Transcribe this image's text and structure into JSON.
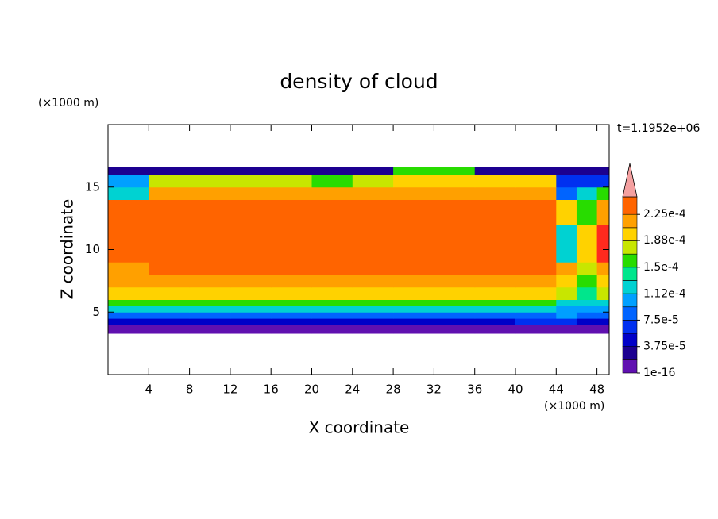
{
  "chart_data": {
    "type": "contour",
    "title": "density of cloud",
    "x_label": "X coordinate",
    "y_label": "Z coordinate",
    "x_unit": "(×1000 m)",
    "y_unit": "(×1000 m)",
    "time_label": "t=1.1952e+06",
    "xlim": [
      0,
      49.2
    ],
    "ylim": [
      0,
      20
    ],
    "xticks": [
      4,
      8,
      12,
      16,
      20,
      24,
      28,
      32,
      36,
      40,
      44,
      48
    ],
    "yticks": [
      5,
      10,
      15
    ],
    "x_edges": [
      0,
      4,
      8,
      12,
      16,
      20,
      24,
      28,
      32,
      36,
      40,
      44,
      46,
      48,
      49.2
    ],
    "z_edges": [
      3.3,
      4,
      4.5,
      5,
      5.5,
      6,
      7,
      8,
      9,
      12,
      14,
      15,
      16,
      16.6
    ],
    "values": [
      [
        1e-05,
        1e-05,
        1e-05,
        1e-05,
        1e-05,
        1e-05,
        1e-05,
        1e-05,
        1e-05,
        1e-05,
        1e-05,
        1e-05,
        1e-05,
        1e-05
      ],
      [
        4e-05,
        4e-05,
        4e-05,
        4e-05,
        4e-05,
        4e-05,
        4e-05,
        4e-05,
        4e-05,
        4e-05,
        6e-05,
        6e-05,
        5e-05,
        5e-05
      ],
      [
        8e-05,
        8e-05,
        8e-05,
        8e-05,
        8e-05,
        8e-05,
        8e-05,
        8e-05,
        8e-05,
        8e-05,
        9e-05,
        0.0001,
        9e-05,
        9e-05
      ],
      [
        0.000125,
        0.000125,
        0.000125,
        0.000125,
        0.000125,
        0.000125,
        0.000125,
        0.000125,
        0.000125,
        0.000125,
        0.00012,
        0.00011,
        0.00011,
        0.00011
      ],
      [
        0.00016,
        0.00016,
        0.00016,
        0.00016,
        0.00016,
        0.00016,
        0.00016,
        0.00016,
        0.00016,
        0.00016,
        0.00015,
        0.00013,
        0.00013,
        0.00013
      ],
      [
        0.00019,
        0.00019,
        0.00019,
        0.00019,
        0.00019,
        0.00019,
        0.00019,
        0.00019,
        0.00019,
        0.00019,
        0.00019,
        0.00017,
        0.00014,
        0.00018
      ],
      [
        0.00021,
        0.00021,
        0.00021,
        0.00021,
        0.00021,
        0.00021,
        0.00021,
        0.00021,
        0.00021,
        0.00021,
        0.00021,
        0.0002,
        0.00016,
        0.0002
      ],
      [
        0.00022,
        0.000225,
        0.000228,
        0.000228,
        0.000228,
        0.000228,
        0.000228,
        0.000228,
        0.000228,
        0.000228,
        0.000228,
        0.00021,
        0.00018,
        0.00022
      ],
      [
        0.000235,
        0.00024,
        0.00024,
        0.00024,
        0.00024,
        0.00024,
        0.00024,
        0.00024,
        0.00024,
        0.00024,
        0.00024,
        0.00012,
        0.00019,
        0.00026
      ],
      [
        0.000235,
        0.000235,
        0.000235,
        0.000235,
        0.000235,
        0.000235,
        0.000235,
        0.000235,
        0.000235,
        0.000235,
        0.00023,
        0.0002,
        0.00015,
        0.00021
      ],
      [
        0.00013,
        0.00021,
        0.00021,
        0.00021,
        0.00021,
        0.00021,
        0.00021,
        0.00021,
        0.00021,
        0.00021,
        0.00021,
        8e-05,
        0.00012,
        0.00015
      ],
      [
        0.0001,
        0.00018,
        0.00018,
        0.00018,
        0.00018,
        0.00016,
        0.00018,
        0.0002,
        0.0002,
        0.0002,
        0.00019,
        7e-05,
        7e-05,
        7e-05
      ],
      [
        3e-05,
        3e-05,
        3e-05,
        3e-05,
        3e-05,
        3e-05,
        3e-05,
        0.00015,
        0.00015,
        3e-05,
        3e-05,
        3e-05,
        3e-05,
        3e-05
      ]
    ],
    "levels": [
      1e-16,
      1.875e-05,
      3.75e-05,
      5.625e-05,
      7.5e-05,
      9.375e-05,
      0.0001125,
      0.00013125,
      0.00015,
      0.00016875,
      0.0001875,
      0.00020625,
      0.000225,
      0.00025
    ],
    "colors": [
      "#6010b0",
      "#1c0090",
      "#0000c8",
      "#0030f0",
      "#0064ff",
      "#00a0ff",
      "#00d2d2",
      "#00e68c",
      "#28dc00",
      "#c8e600",
      "#ffd200",
      "#ffa000",
      "#ff6400",
      "#ff2a1e",
      "#f4a0a0"
    ],
    "colorbar_ticks": [
      {
        "value": 1e-16,
        "label": "1e-16"
      },
      {
        "value": 3.75e-05,
        "label": "3.75e-5"
      },
      {
        "value": 7.5e-05,
        "label": "7.5e-5"
      },
      {
        "value": 0.000112,
        "label": "1.12e-4"
      },
      {
        "value": 0.00015,
        "label": "1.5e-4"
      },
      {
        "value": 0.000188,
        "label": "1.88e-4"
      },
      {
        "value": 0.000225,
        "label": "2.25e-4"
      }
    ]
  }
}
